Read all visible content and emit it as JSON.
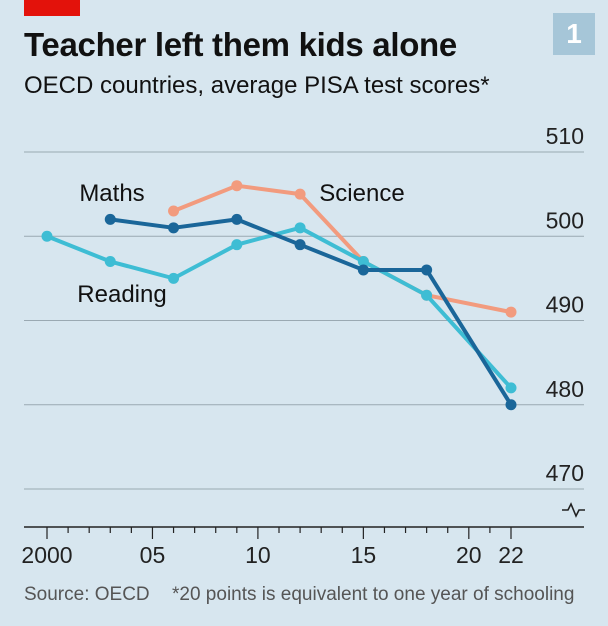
{
  "header": {
    "title": "Teacher left them kids alone",
    "subtitle": "OECD countries, average PISA test scores*",
    "badge": "1"
  },
  "footer": {
    "source": "Source: OECD",
    "note": "*20 points is equivalent to one year of schooling"
  },
  "colors": {
    "background": "#d7e6ef",
    "maths": "#1a6699",
    "reading": "#3ebdd4",
    "science": "#f29b7e",
    "grid": "#9aa9b2",
    "brand_red": "#e3120b"
  },
  "chart_data": {
    "type": "line",
    "title": "Teacher left them kids alone",
    "subtitle": "OECD countries, average PISA test scores*",
    "ylim": [
      467,
      513
    ],
    "y_ticks": [
      470,
      480,
      490,
      500,
      510
    ],
    "xlim": [
      1999,
      2023
    ],
    "x_ticks": [
      2000,
      2003,
      2006,
      2009,
      2012,
      2015,
      2018,
      2022
    ],
    "x_tick_labels": [
      "2000",
      "",
      "05",
      "",
      "10",
      "",
      "15",
      "",
      "20",
      "22"
    ],
    "x_tick_label_years": [
      2000,
      2003,
      2005,
      2008,
      2010,
      2013,
      2015,
      2018,
      2020,
      2022
    ],
    "axis_break": true,
    "series": [
      {
        "name": "Science",
        "color": "#f29b7e",
        "x": [
          2006,
          2009,
          2012,
          2015,
          2018,
          2022
        ],
        "values": [
          503,
          506,
          505,
          497,
          493,
          491
        ]
      },
      {
        "name": "Reading",
        "color": "#3ebdd4",
        "x": [
          2000,
          2003,
          2006,
          2009,
          2012,
          2015,
          2018,
          2022
        ],
        "values": [
          500,
          497,
          495,
          499,
          501,
          497,
          493,
          482
        ]
      },
      {
        "name": "Maths",
        "color": "#1a6699",
        "x": [
          2003,
          2006,
          2009,
          2012,
          2015,
          2018,
          2022
        ],
        "values": [
          502,
          501,
          502,
          499,
          496,
          496,
          480
        ]
      }
    ],
    "series_labels": [
      "Maths",
      "Science",
      "Reading"
    ]
  }
}
